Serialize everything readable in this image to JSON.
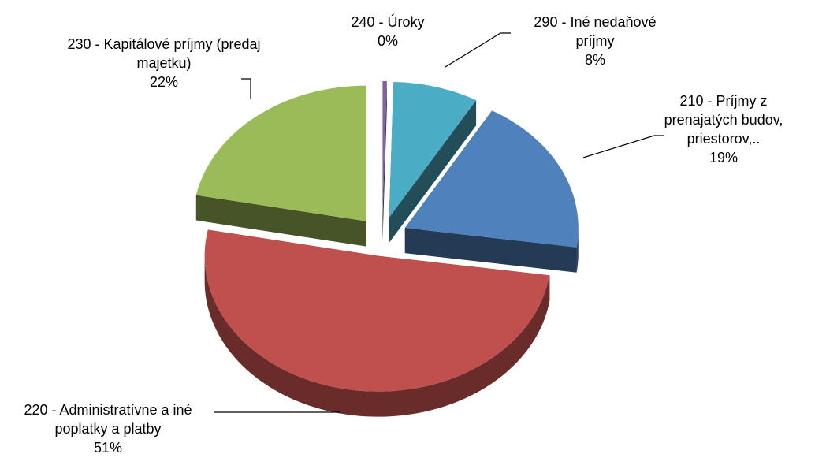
{
  "chart_data": {
    "type": "pie",
    "categories": [
      "240 - Úroky",
      "290 - Iné nedaňové príjmy",
      "210 - Príjmy z prenajatých budov, priestorov,..",
      "220 - Administratívne a iné poplatky a platby",
      "230 - Kapitálové príjmy (predaj majetku)"
    ],
    "values": [
      0.4,
      8,
      19,
      51,
      22
    ],
    "value_labels": [
      "0%",
      "8%",
      "19%",
      "51%",
      "22%"
    ],
    "colors": [
      "#8064a2",
      "#4bacc6",
      "#4f81bd",
      "#c0504d",
      "#9bbb59"
    ]
  }
}
